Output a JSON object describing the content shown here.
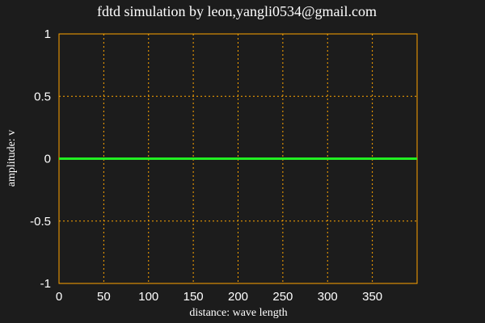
{
  "chart_data": {
    "type": "line",
    "title": "fdtd simulation by leon,yangli0534@gmail.com",
    "xlabel": "distance: wave length",
    "ylabel": "amplitude: v",
    "xlim": [
      0,
      400
    ],
    "ylim": [
      -1,
      1
    ],
    "xticks": [
      "0",
      "50",
      "100",
      "150",
      "200",
      "250",
      "300",
      "350"
    ],
    "yticks": [
      "1",
      "0.5",
      "0",
      "-0.5",
      "-1"
    ],
    "grid": true,
    "series": [
      {
        "values": [
          [
            0,
            0
          ],
          [
            400,
            0
          ]
        ]
      }
    ]
  },
  "colors": {
    "background": "#1c1c1c",
    "frame": "#ffa500",
    "grid": "#ffa500",
    "series": "#22ee22",
    "text": "#ffffff"
  }
}
